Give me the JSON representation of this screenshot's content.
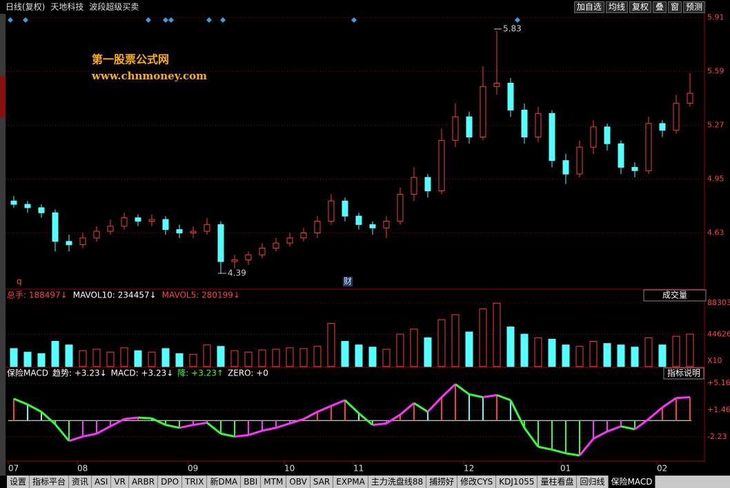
{
  "header": {
    "title": "日线(复权)",
    "stock": "天地科技",
    "indicator": "波段超级买卖",
    "buttons": [
      "加自选",
      "均线",
      "复权",
      "叠",
      "窗",
      "预测"
    ]
  },
  "watermark": {
    "name": "第一股票公式网",
    "url": "www.chnmoney.com"
  },
  "chart_data": [
    {
      "type": "candlestick",
      "categories": [
        "07",
        null,
        null,
        null,
        null,
        "08",
        null,
        null,
        null,
        null,
        null,
        null,
        null,
        "09",
        null,
        null,
        null,
        null,
        null,
        null,
        "10",
        null,
        null,
        null,
        null,
        "11",
        null,
        null,
        null,
        null,
        null,
        null,
        null,
        "12",
        null,
        null,
        null,
        null,
        null,
        null,
        "01",
        null,
        null,
        null,
        null,
        null,
        null,
        "02",
        null,
        null
      ],
      "open": [
        4.82,
        4.8,
        4.78,
        4.75,
        4.58,
        4.56,
        4.6,
        4.64,
        4.67,
        4.72,
        4.7,
        4.71,
        4.65,
        4.63,
        4.64,
        4.68,
        4.46,
        4.47,
        4.5,
        4.54,
        4.57,
        4.6,
        4.63,
        4.7,
        4.82,
        4.73,
        4.68,
        4.66,
        4.7,
        4.86,
        4.96,
        4.88,
        5.18,
        5.32,
        5.2,
        5.5,
        5.52,
        5.36,
        5.2,
        5.34,
        5.06,
        4.98,
        5.14,
        5.26,
        5.16,
        5.02,
        5.0,
        5.28,
        5.24,
        5.4
      ],
      "high": [
        4.85,
        4.82,
        4.8,
        4.77,
        4.62,
        4.63,
        4.67,
        4.71,
        4.75,
        4.74,
        4.74,
        4.73,
        4.68,
        4.67,
        4.72,
        4.7,
        4.5,
        4.52,
        4.57,
        4.6,
        4.63,
        4.66,
        4.73,
        4.86,
        4.84,
        4.75,
        4.7,
        4.73,
        4.9,
        5.02,
        4.98,
        5.25,
        5.4,
        5.35,
        5.62,
        5.83,
        5.55,
        5.4,
        5.38,
        5.36,
        5.1,
        5.18,
        5.3,
        5.28,
        5.18,
        5.05,
        5.32,
        5.3,
        5.45,
        5.58
      ],
      "low": [
        4.78,
        4.75,
        4.72,
        4.52,
        4.52,
        4.54,
        4.58,
        4.62,
        4.65,
        4.67,
        4.67,
        4.62,
        4.6,
        4.6,
        4.62,
        4.39,
        4.42,
        4.44,
        4.48,
        4.52,
        4.55,
        4.58,
        4.6,
        4.68,
        4.7,
        4.65,
        4.62,
        4.6,
        4.68,
        4.82,
        4.84,
        4.86,
        5.14,
        5.16,
        5.18,
        5.45,
        5.32,
        5.16,
        5.17,
        5.02,
        4.92,
        4.96,
        5.1,
        5.12,
        4.98,
        4.96,
        4.98,
        5.2,
        5.22,
        5.38
      ],
      "close": [
        4.8,
        4.78,
        4.75,
        4.58,
        4.56,
        4.6,
        4.64,
        4.67,
        4.72,
        4.7,
        4.71,
        4.65,
        4.63,
        4.64,
        4.68,
        4.46,
        4.47,
        4.5,
        4.54,
        4.57,
        4.6,
        4.63,
        4.7,
        4.82,
        4.73,
        4.68,
        4.66,
        4.7,
        4.86,
        4.96,
        4.88,
        5.18,
        5.32,
        5.2,
        5.5,
        5.52,
        5.36,
        5.2,
        5.34,
        5.06,
        4.98,
        5.14,
        5.26,
        5.16,
        5.02,
        5.0,
        5.28,
        5.24,
        5.4,
        5.46
      ],
      "up_color": "#ff3c3c",
      "down_color": "#54ffff",
      "ylim": [
        4.3,
        5.94
      ],
      "yticks": [
        4.63,
        4.95,
        5.27,
        5.59,
        5.91
      ],
      "grid": true,
      "annotations": [
        "5.83",
        "4.39",
        "q",
        "财"
      ]
    },
    {
      "type": "volume",
      "legend": [
        "总手: 188497↓",
        "MAVOL10: 234457↓",
        "MAVOL5: 280199↓"
      ],
      "legend_colors": [
        "#ff4040",
        "#ffffff",
        "#ff4040"
      ],
      "selector": "成交量",
      "values": [
        25000,
        20000,
        18000,
        35000,
        30000,
        22000,
        24000,
        20000,
        26000,
        22000,
        20000,
        25000,
        18000,
        17000,
        30000,
        28000,
        22000,
        20000,
        23000,
        24000,
        26000,
        25000,
        28000,
        60000,
        35000,
        30000,
        27000,
        24000,
        45000,
        52000,
        40000,
        65000,
        72000,
        48000,
        80000,
        88000,
        55000,
        45000,
        40000,
        38000,
        30000,
        28000,
        35000,
        32000,
        30000,
        27000,
        40000,
        30000,
        42000,
        45000
      ],
      "ylim": [
        0,
        93000
      ],
      "yticks": [
        44626,
        88303
      ],
      "grid": true,
      "unit_label": "X10"
    },
    {
      "type": "macd",
      "legend": [
        "保险MACD",
        "趋势: +3.23↓",
        "MACD: +3.23↓",
        "降: +3.23↑",
        "ZERO: +0"
      ],
      "legend_colors": [
        "#ffffff",
        "#ffffff",
        "#ffffff",
        "#33ff33",
        "#ffffff"
      ],
      "button": "指标说明",
      "values": [
        3.0,
        2.2,
        1.2,
        -0.5,
        -2.8,
        -2.2,
        -1.8,
        -0.8,
        0.2,
        0.4,
        0.3,
        -0.6,
        -1.0,
        -0.6,
        -0.3,
        -1.8,
        -2.2,
        -2.0,
        -1.4,
        -1.0,
        -0.4,
        0.2,
        1.2,
        2.0,
        2.8,
        1.0,
        -0.6,
        -0.4,
        0.8,
        2.4,
        1.2,
        3.2,
        5.0,
        3.6,
        3.2,
        3.5,
        2.8,
        -1.0,
        -3.6,
        -4.0,
        -4.5,
        -4.8,
        -2.5,
        -1.5,
        -0.8,
        -1.2,
        0.2,
        1.8,
        3.1,
        3.2
      ],
      "ylim": [
        -5.57,
        5.81
      ],
      "yticks": [
        -2.23,
        {
          "value": 1.46,
          "label": "+1.46"
        },
        {
          "value": 5.16,
          "label": "+5.16"
        }
      ],
      "grid": true
    }
  ],
  "tabs": [
    "设置",
    "指标平台",
    "资讯",
    "ASI",
    "VR",
    "ARBR",
    "DPO",
    "TRIX",
    "新DMA",
    "BBI",
    "MTM",
    "OBV",
    "SAR",
    "EXPMA",
    "主力洗盘线88",
    "捕捞好",
    "修改CYS",
    "KDJ1055",
    "量柱看盘",
    "回归线",
    "保险MACD"
  ],
  "active_tab": 20
}
